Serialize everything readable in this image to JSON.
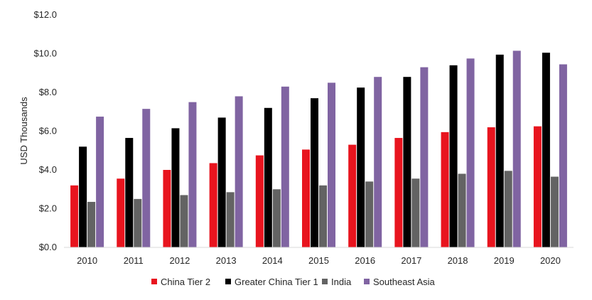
{
  "chart_data": {
    "type": "bar",
    "title": "",
    "xlabel": "",
    "ylabel": "USD Thousands",
    "ylim": [
      0,
      12
    ],
    "y_ticks": [
      "$0.0",
      "$2.0",
      "$4.0",
      "$6.0",
      "$8.0",
      "$10.0",
      "$12.0"
    ],
    "y_tick_values": [
      0,
      2,
      4,
      6,
      8,
      10,
      12
    ],
    "grid": false,
    "legend_position": "bottom",
    "categories": [
      "2010",
      "2011",
      "2012",
      "2013",
      "2014",
      "2015",
      "2016",
      "2017",
      "2018",
      "2019",
      "2020"
    ],
    "series": [
      {
        "name": "China Tier 2",
        "color": "#e8141e",
        "values": [
          3.2,
          3.55,
          4.0,
          4.35,
          4.75,
          5.05,
          5.3,
          5.65,
          5.95,
          6.2,
          6.25
        ]
      },
      {
        "name": "Greater China Tier 1",
        "color": "#000000",
        "values": [
          5.2,
          5.65,
          6.15,
          6.7,
          7.2,
          7.7,
          8.25,
          8.8,
          9.4,
          9.95,
          10.05
        ]
      },
      {
        "name": "India",
        "color": "#636363",
        "values": [
          2.35,
          2.5,
          2.7,
          2.85,
          3.0,
          3.2,
          3.4,
          3.55,
          3.8,
          3.95,
          3.65
        ]
      },
      {
        "name": "Southeast Asia",
        "color": "#8064a2",
        "values": [
          6.75,
          7.15,
          7.5,
          7.8,
          8.3,
          8.5,
          8.8,
          9.3,
          9.75,
          10.15,
          9.45
        ]
      }
    ]
  }
}
